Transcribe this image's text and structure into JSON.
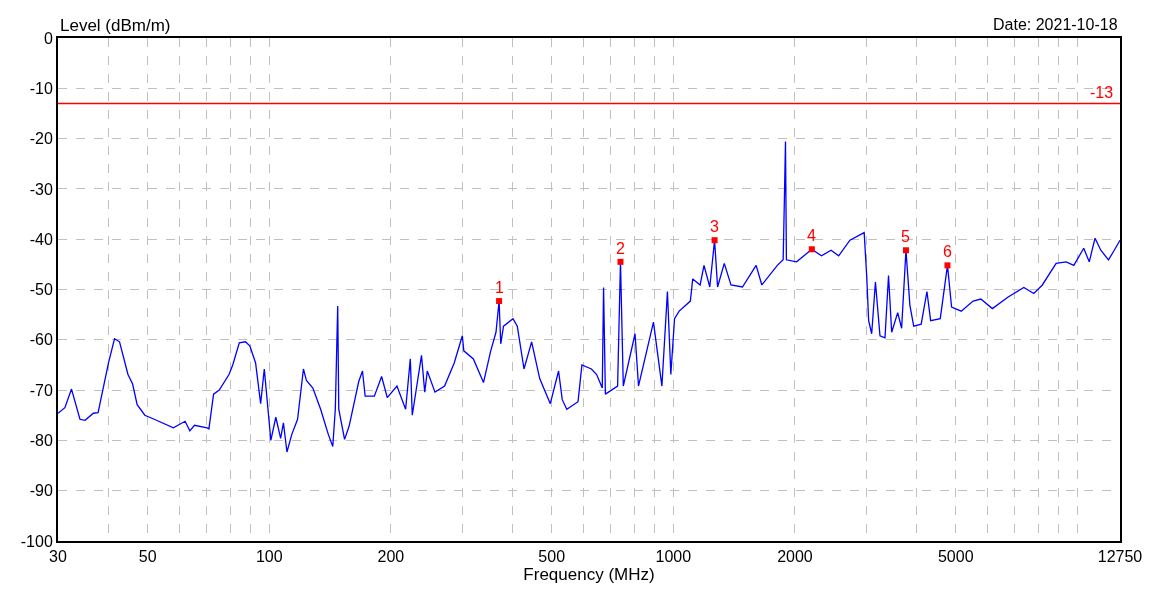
{
  "chart_data": {
    "type": "line",
    "xlabel": "Frequency (MHz)",
    "ylabel": "Level (dBm/m)",
    "annotations": [
      "Date: 2021-10-18",
      {
        "text": "1",
        "x": 370.5,
        "y": -52.3
      },
      {
        "text": "2",
        "x": 740,
        "y": -44.5
      },
      {
        "text": "3",
        "x": 1265,
        "y": -40.2
      },
      {
        "text": "4",
        "x": 2202,
        "y": -42
      },
      {
        "text": "5",
        "x": 3765,
        "y": -42.2
      },
      {
        "text": "6",
        "x": 4770,
        "y": -45.2
      }
    ],
    "log": "x",
    "grid": true,
    "xlim": [
      30,
      12750
    ],
    "ylim": [
      -100,
      0
    ],
    "xticks": [
      30,
      {
        "value": 40,
        "label": null
      },
      50,
      {
        "value": 60,
        "label": null
      },
      {
        "value": 70,
        "label": null
      },
      {
        "value": 80,
        "label": null
      },
      {
        "value": 90,
        "label": null
      },
      100,
      200,
      {
        "value": 300,
        "label": null
      },
      {
        "value": 400,
        "label": null
      },
      500,
      {
        "value": 600,
        "label": null
      },
      {
        "value": 700,
        "label": null
      },
      {
        "value": 800,
        "label": null
      },
      {
        "value": 900,
        "label": null
      },
      1000,
      2000,
      {
        "value": 3000,
        "label": null
      },
      {
        "value": 4000,
        "label": null
      },
      5000,
      {
        "value": 6000,
        "label": null
      },
      {
        "value": 7000,
        "label": null
      },
      {
        "value": 8000,
        "label": null
      },
      {
        "value": 9000,
        "label": null
      },
      {
        "value": 10000,
        "label": null
      },
      12750
    ],
    "yticks": [
      0,
      -10,
      -20,
      -30,
      -40,
      -50,
      -60,
      -70,
      -80,
      -90,
      -100
    ],
    "ref_lines": [
      {
        "axis": "y",
        "value": -13,
        "label": "-13",
        "color": "#ff0000"
      }
    ],
    "series": [
      {
        "color": "#0000ff",
        "marker": "none",
        "line_style": "solid",
        "x": [
          30,
          31.2,
          32.4,
          34.0,
          35.0,
          36.7,
          37.7,
          40.0,
          41.4,
          42.6,
          44.7,
          45.9,
          47.1,
          49.2,
          51.9,
          57.9,
          61.9,
          63.6,
          65.3,
          70.2,
          70.9,
          72.8,
          75.2,
          79.5,
          81.2,
          84.3,
          87.3,
          89.5,
          92.5,
          95.2,
          97.2,
          100.9,
          103.8,
          106.7,
          108.4,
          110.6,
          113.7,
          117.5,
          121.5,
          123.6,
          128.2,
          134,
          140,
          143.6,
          145.7,
          147.7,
          148.6,
          153.6,
          157.6,
          166.5,
          170.1,
          172.7,
          182,
          189.7,
          195.9,
          207,
          217.5,
          223.4,
          225.9,
          238.1,
          242.5,
          246.1,
          257.1,
          271.6,
          286.9,
          300.5,
          303,
          320,
          339,
          353,
          364,
          370.5,
          374,
          380,
          401,
          411,
          427,
          446,
          467,
          496,
          520,
          531,
          545,
          581,
          594,
          627,
          646,
          667,
          672,
          679,
          728,
          740,
          752,
          804,
          820,
          893,
          937,
          967,
          986,
          1007,
          1034,
          1102,
          1117,
          1165,
          1191,
          1231,
          1265,
          1287,
          1337,
          1389,
          1483,
          1603,
          1656,
          1809,
          1870,
          1883,
          1895,
          1905,
          2019,
          2202,
          2326,
          2456,
          2566,
          2736,
          2967,
          3010,
          3044,
          3097,
          3164,
          3247,
          3341,
          3409,
          3471,
          3592,
          3673,
          3765,
          3850,
          3935,
          4107,
          4243,
          4334,
          4578,
          4770,
          4883,
          5160,
          5520,
          5770,
          6160,
          6740,
          7370,
          7800,
          8190,
          8860,
          9380,
          9800,
          10370,
          10700,
          11060,
          11430,
          11940,
          12340,
          12750
        ],
        "values": [
          -74.6,
          -73.5,
          -69.8,
          -75.8,
          -76,
          -74.6,
          -74.5,
          -64.6,
          -59.8,
          -60.4,
          -66.9,
          -68.8,
          -72.9,
          -75,
          -75.8,
          -77.5,
          -76.2,
          -78.1,
          -77,
          -77.5,
          -77.7,
          -70.8,
          -70,
          -66.9,
          -65,
          -60.6,
          -60.4,
          -61.2,
          -64.6,
          -72.7,
          -65.8,
          -80,
          -75.4,
          -79.6,
          -76.5,
          -82.3,
          -78.8,
          -75.8,
          -65.8,
          -68.1,
          -69.6,
          -73.8,
          -78.8,
          -81.2,
          -73.8,
          -53.3,
          -73.8,
          -79.8,
          -77.2,
          -68.3,
          -66.2,
          -71.2,
          -71.2,
          -67.3,
          -71.5,
          -69.2,
          -73.8,
          -63.8,
          -75,
          -63.1,
          -70.4,
          -66.2,
          -70.4,
          -69.2,
          -64.6,
          -59.2,
          -62.2,
          -63.8,
          -68.5,
          -62.3,
          -58.5,
          -52.3,
          -60.8,
          -57.3,
          -55.8,
          -57.3,
          -65.8,
          -60.4,
          -67.7,
          -72.7,
          -66.2,
          -71.9,
          -73.8,
          -72.3,
          -65,
          -65.8,
          -66.9,
          -69.6,
          -49.6,
          -70.8,
          -69.2,
          -44.5,
          -69.2,
          -58.8,
          -69.2,
          -56.5,
          -69.2,
          -50.4,
          -66.9,
          -55.8,
          -54.3,
          -52.3,
          -47.9,
          -49.1,
          -45.2,
          -49.5,
          -40.2,
          -49.5,
          -44.8,
          -49.1,
          -49.5,
          -45.2,
          -49.1,
          -45.2,
          -44.1,
          -32.2,
          -20.6,
          -44.1,
          -44.5,
          -42,
          -43.3,
          -42.2,
          -43.3,
          -40.2,
          -38.7,
          -47.2,
          -56.2,
          -58.8,
          -48.5,
          -59.2,
          -59.6,
          -47.2,
          -58.5,
          -54.6,
          -57.7,
          -42.2,
          -53.1,
          -57.3,
          -56.9,
          -50.4,
          -56.2,
          -55.8,
          -45.2,
          -53.5,
          -54.3,
          -52.3,
          -51.9,
          -53.8,
          -51.5,
          -49.6,
          -50.8,
          -49.1,
          -44.8,
          -44.5,
          -45.2,
          -41.8,
          -44.5,
          -39.8,
          -42.2,
          -44.1,
          -42.2,
          -40.2
        ]
      },
      {
        "type": "scatter",
        "color": "#ff0000",
        "marker": "square",
        "x": [
          370.5,
          740,
          1265,
          2202,
          3765,
          4770
        ],
        "values": [
          -52.3,
          -44.5,
          -40.2,
          -42,
          -42.2,
          -45.2
        ]
      }
    ]
  }
}
